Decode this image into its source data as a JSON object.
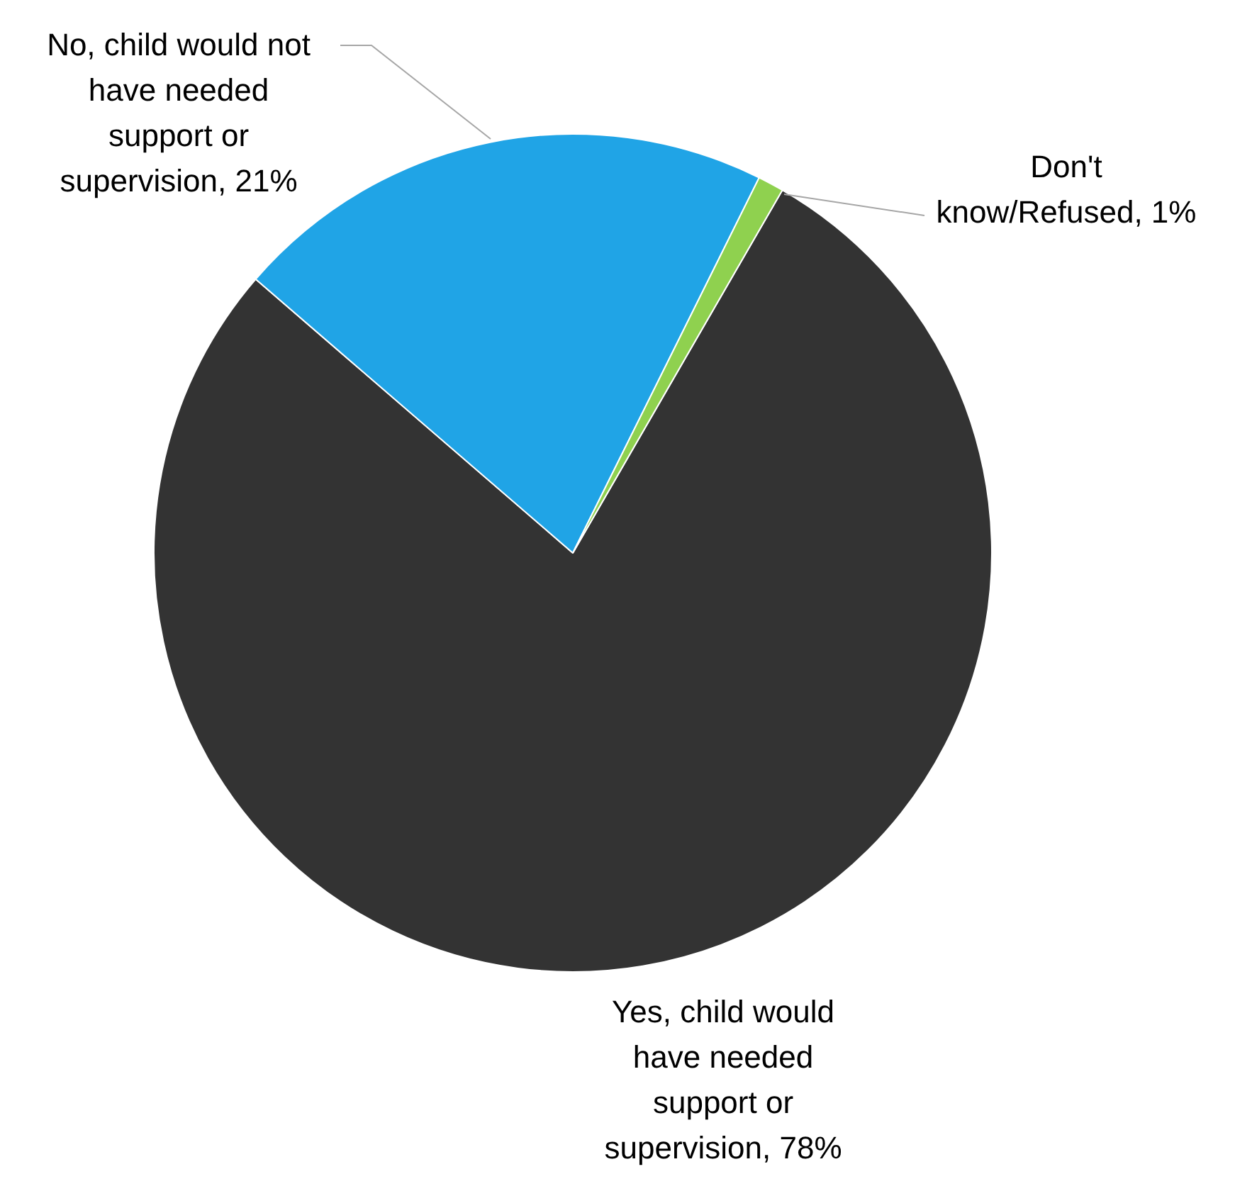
{
  "chart_data": {
    "type": "pie",
    "categories": [
      "Yes, child would have needed support or supervision",
      "No, child would not have needed support or supervision",
      "Don't know/Refused"
    ],
    "values": [
      78,
      21,
      1
    ],
    "value_labels": [
      "78%",
      "21%",
      "1%"
    ],
    "colors": [
      "#333333",
      "#20a4e6",
      "#8fd14f"
    ],
    "legend": false
  }
}
